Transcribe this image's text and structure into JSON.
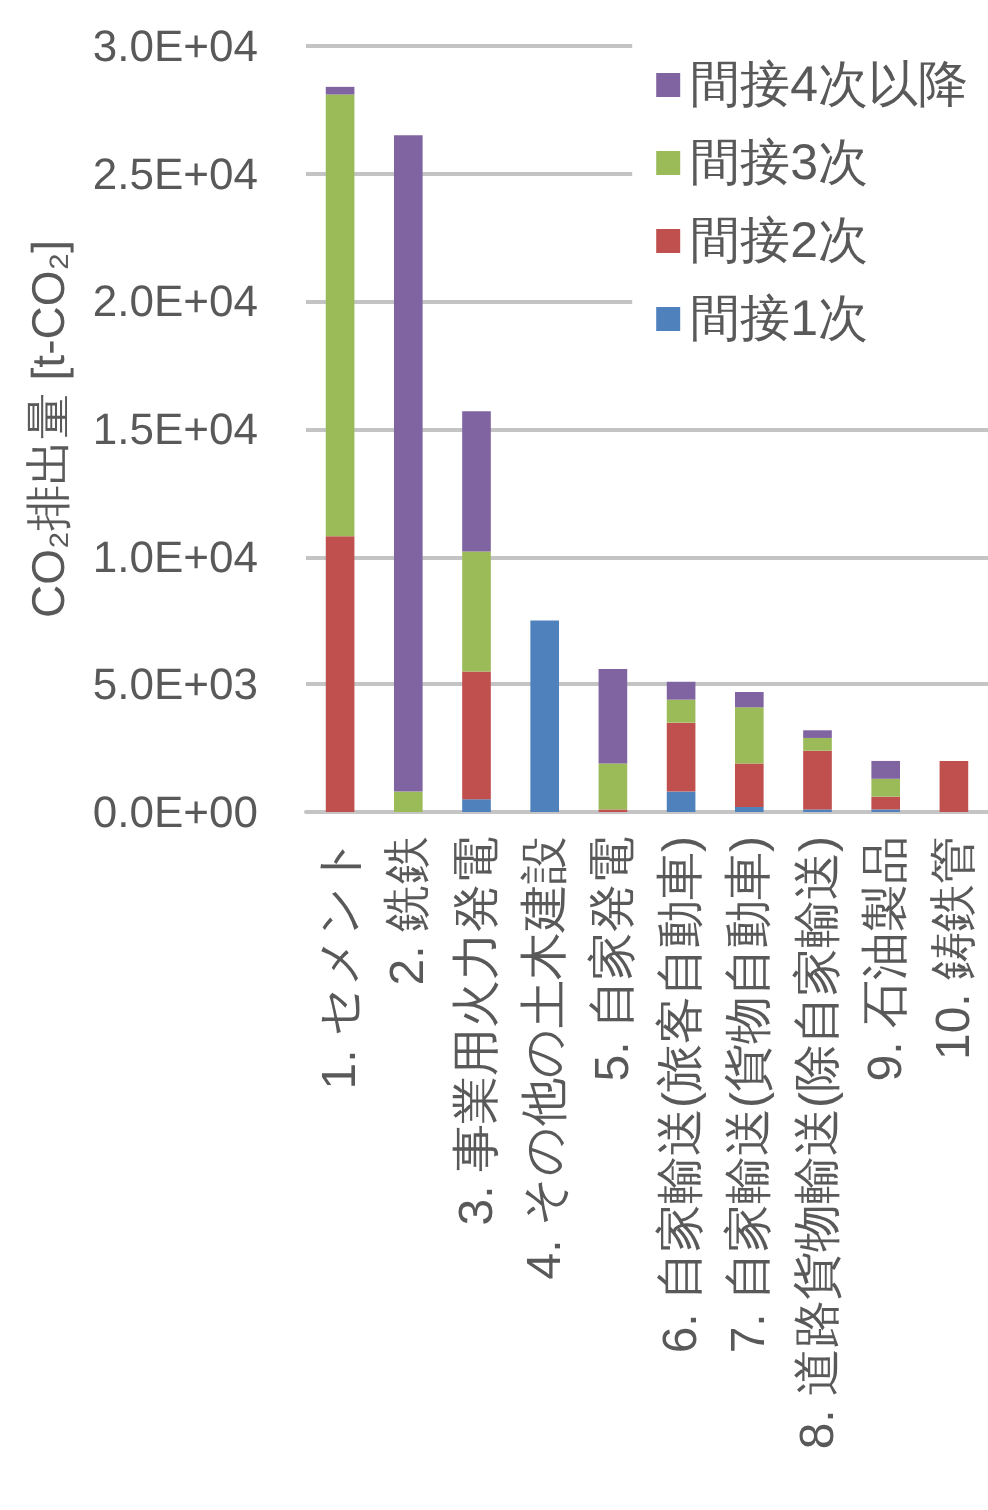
{
  "chart_data": {
    "type": "bar",
    "stacked": true,
    "ylabel": "CO₂排出量 [t-CO₂]",
    "categories": [
      "1. セメント",
      "2. 銑鉄",
      "3. 事業用火力発電",
      "4. その他の土木建設",
      "5. 自家発電",
      "6. 自家輸送(旅客自動車)",
      "7. 自家輸送(貨物自動車)",
      "8. 道路貨物輸送(除自家輸送)",
      "9. 石油製品",
      "10. 鋳鉄管"
    ],
    "series": [
      {
        "name": "間接1次",
        "color": "#4f81bd",
        "values": [
          0,
          0,
          500,
          7500,
          0,
          800,
          200,
          100,
          100,
          0
        ]
      },
      {
        "name": "間接2次",
        "color": "#c0504d",
        "values": [
          10800,
          0,
          5000,
          0,
          100,
          2700,
          1700,
          2300,
          500,
          2000
        ]
      },
      {
        "name": "間接3次",
        "color": "#9bbb59",
        "values": [
          17300,
          800,
          4700,
          0,
          1800,
          900,
          2200,
          500,
          700,
          0
        ]
      },
      {
        "name": "間接4次以降",
        "color": "#8064a2",
        "values": [
          300,
          25700,
          5500,
          0,
          3700,
          700,
          600,
          300,
          700,
          0
        ]
      }
    ],
    "ylim": [
      0,
      30000
    ],
    "yticks": [
      {
        "value": 0,
        "label": "0.0E+00"
      },
      {
        "value": 5000,
        "label": "5.0E+03"
      },
      {
        "value": 10000,
        "label": "1.0E+04"
      },
      {
        "value": 15000,
        "label": "1.5E+04"
      },
      {
        "value": 20000,
        "label": "2.0E+04"
      },
      {
        "value": 25000,
        "label": "2.5E+04"
      },
      {
        "value": 30000,
        "label": "3.0E+04"
      }
    ],
    "grid": "y",
    "legend": "top right"
  }
}
